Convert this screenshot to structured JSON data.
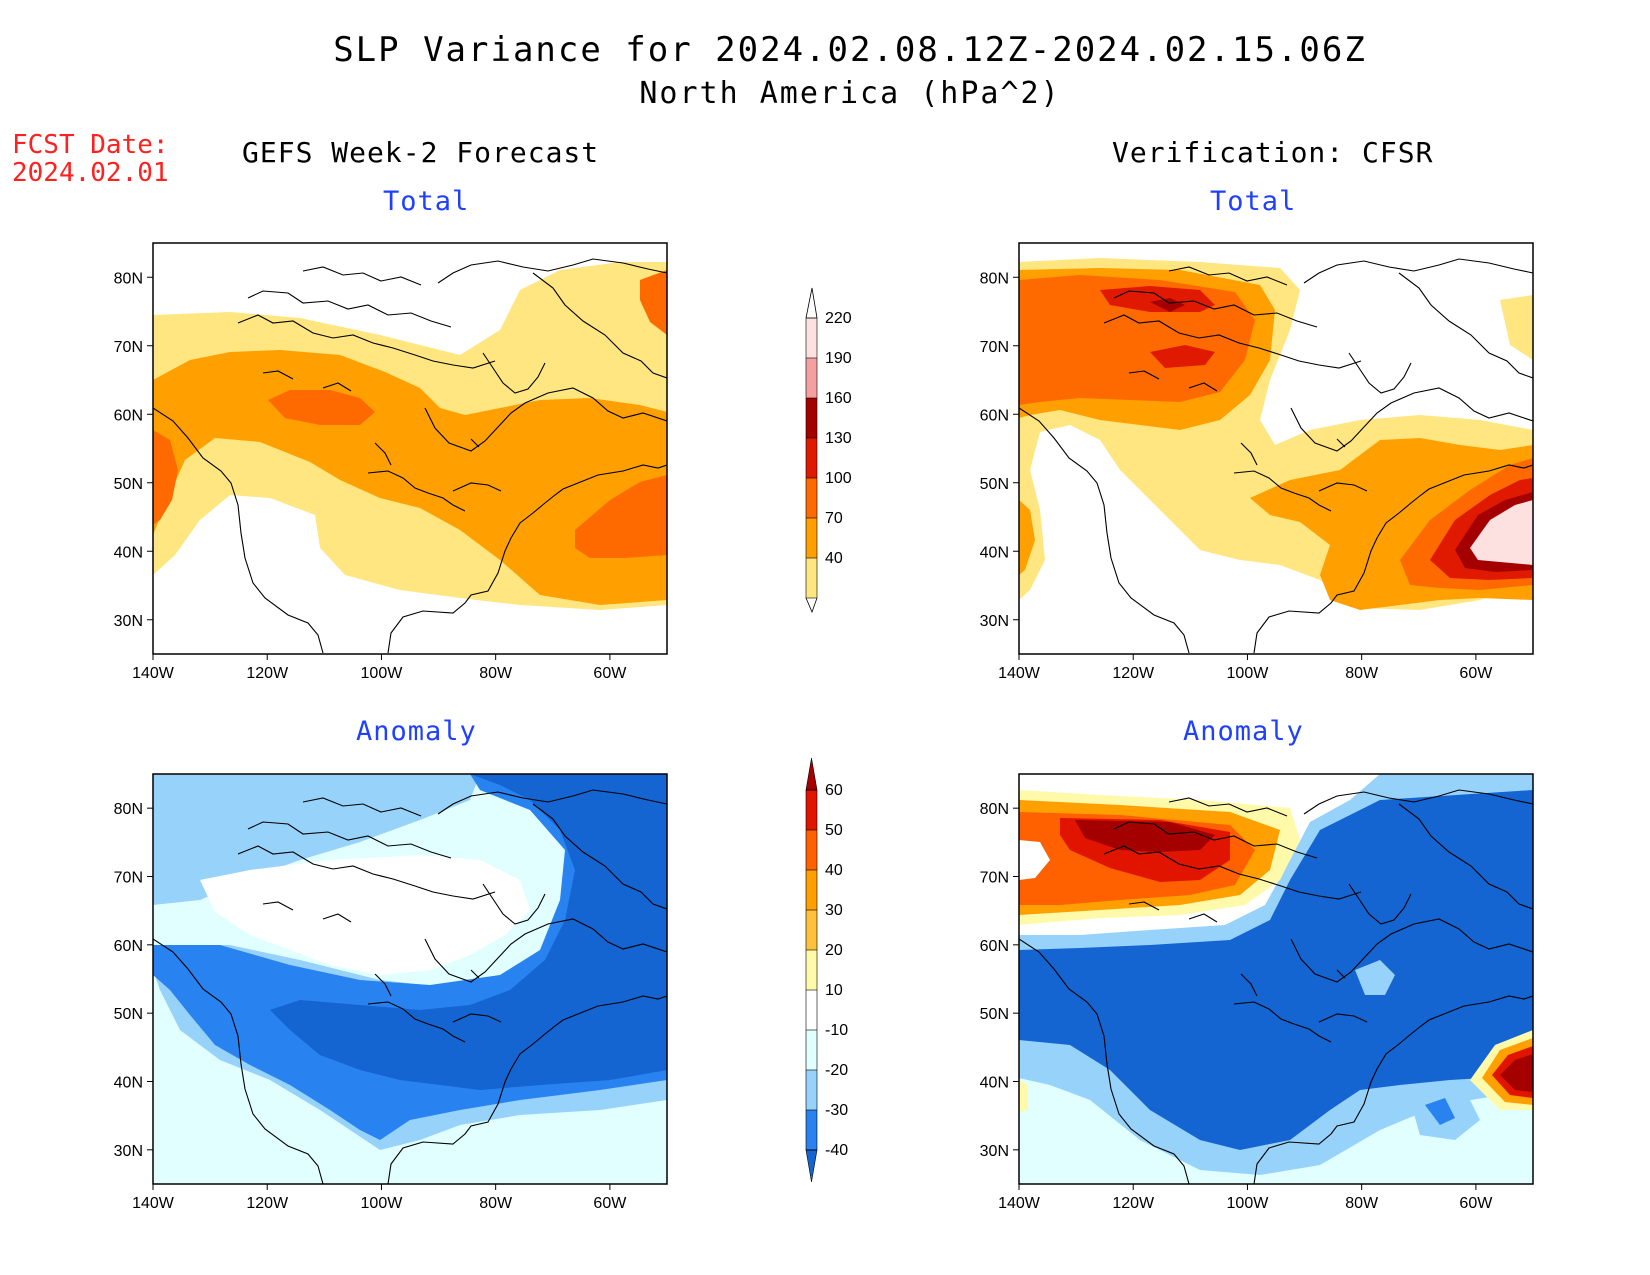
{
  "header": {
    "title": "SLP Variance for 2024.02.08.12Z-2024.02.15.06Z",
    "subtitle": "North America (hPa^2)",
    "fcst_label": "FCST Date:",
    "fcst_date": "2024.02.01"
  },
  "columns": {
    "left": "GEFS Week-2 Forecast",
    "right": "Verification: CFSR"
  },
  "panels": {
    "total": "Total",
    "anomaly": "Anomaly"
  },
  "axes": {
    "lon_labels": [
      "140W",
      "120W",
      "100W",
      "80W",
      "60W"
    ],
    "lat_labels": [
      "80N",
      "70N",
      "60N",
      "50N",
      "40N",
      "30N"
    ]
  },
  "colorbars": {
    "total": {
      "levels": [
        "40",
        "70",
        "100",
        "130",
        "160",
        "190",
        "220"
      ],
      "colors": [
        "#ffe680",
        "#ffa000",
        "#ff6a00",
        "#e01a00",
        "#a50000",
        "#f5a0a0",
        "#fde0e0"
      ]
    },
    "anomaly": {
      "levels": [
        "-40",
        "-30",
        "-20",
        "-10",
        "10",
        "20",
        "30",
        "40",
        "50",
        "60"
      ],
      "colors": [
        "#1464d2",
        "#2882f0",
        "#96d2fa",
        "#e1ffff",
        "#ffffff",
        "#fffaaa",
        "#ffc03c",
        "#ffa000",
        "#ff6000",
        "#e11400",
        "#a50000"
      ]
    }
  },
  "map_colors": {
    "t1": "#ffe680",
    "t2": "#ffa000",
    "t3": "#ff6a00",
    "t4": "#e01a00",
    "t5": "#a50000",
    "t6": "#fde0e0",
    "a_m40": "#1464d2",
    "a_m30": "#2882f0",
    "a_m20": "#96d2fa",
    "a_m10": "#e1ffff",
    "a_p10": "#fffaaa",
    "a_p30": "#ffa000",
    "a_p40": "#ff6000",
    "a_p50": "#e11400",
    "a_p60": "#a50000"
  }
}
